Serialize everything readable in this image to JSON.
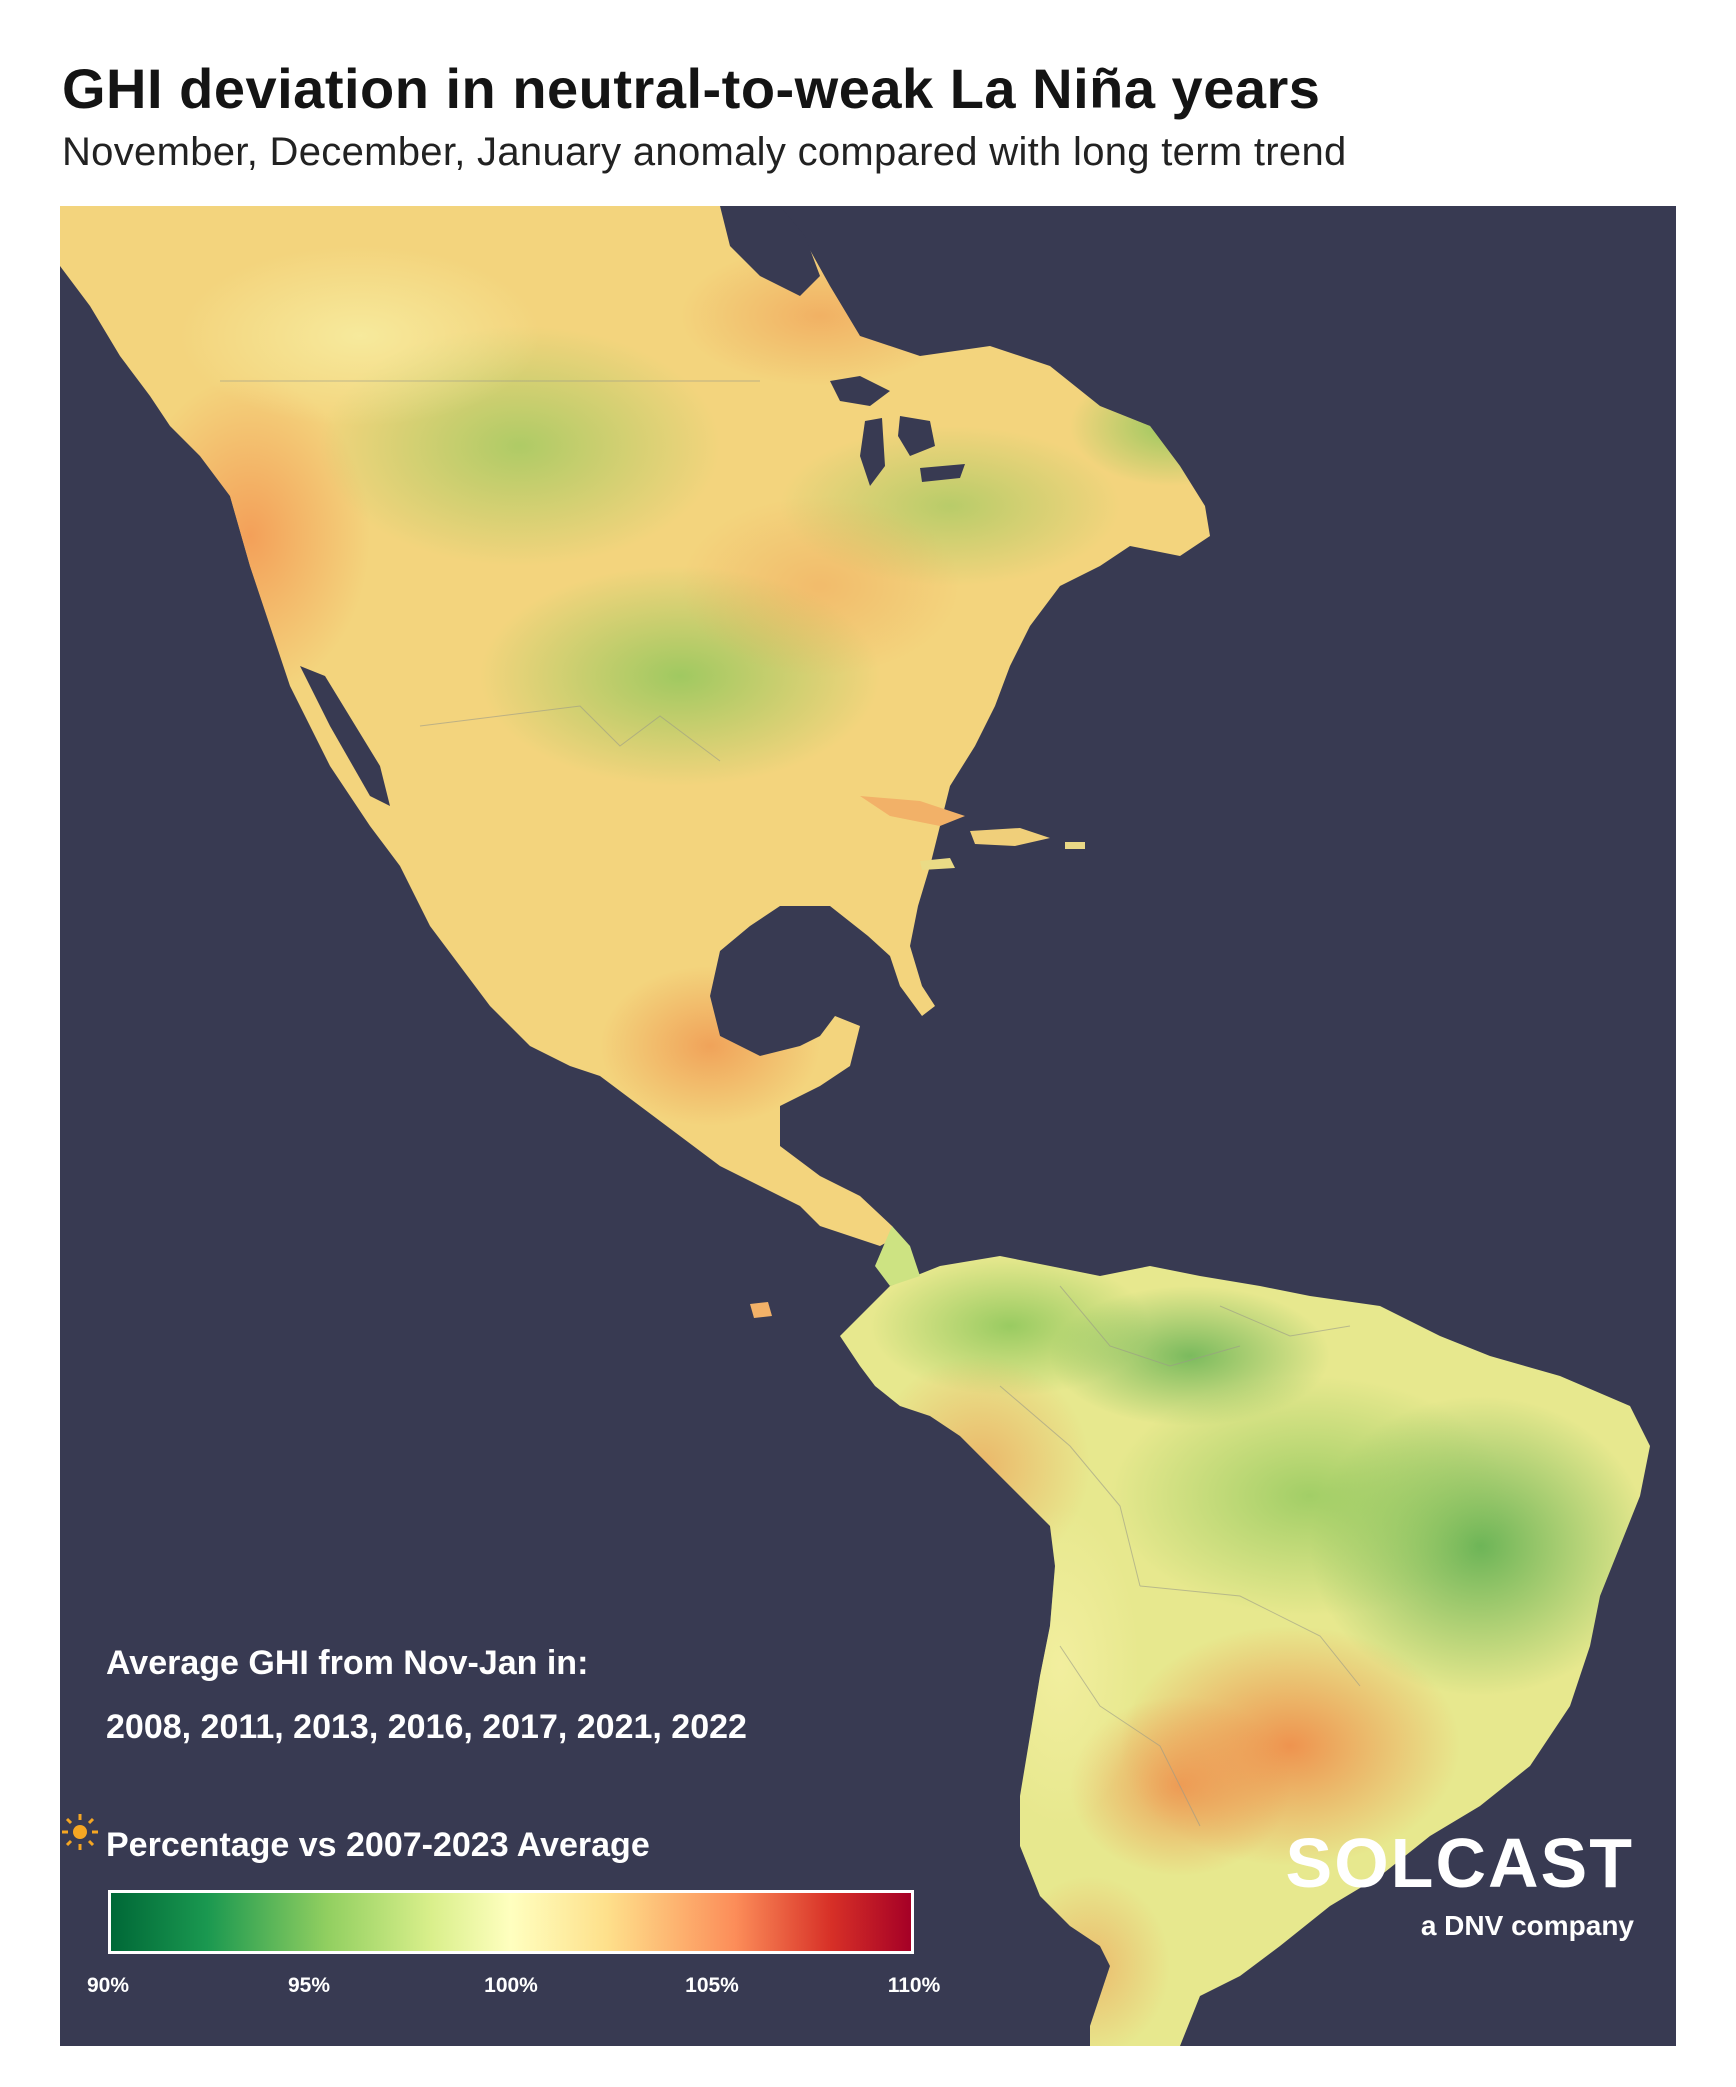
{
  "header": {
    "title": "GHI deviation in neutral-to-weak La Niña years",
    "subtitle": "November, December, January anomaly compared with long term trend"
  },
  "info": {
    "line1": "Average GHI from Nov-Jan in:",
    "line2": "2008, 2011, 2013, 2016, 2017, 2021, 2022"
  },
  "legend": {
    "title": "Percentage vs 2007-2023 Average",
    "ticks": [
      "90%",
      "95%",
      "100%",
      "105%",
      "110%"
    ],
    "colors": [
      "#006837",
      "#1a9850",
      "#91cf60",
      "#d9ef8b",
      "#ffffbf",
      "#fee08b",
      "#fc8d59",
      "#d73027",
      "#a50026"
    ]
  },
  "logo": {
    "wordmark": "SOLCAST",
    "tagline": "a DNV company"
  },
  "map": {
    "background": "#383a52",
    "regions": [
      {
        "name": "north-america",
        "tone": "#f2d27a"
      },
      {
        "name": "central-america",
        "tone": "#e9e88f"
      },
      {
        "name": "caribbean",
        "tone": "#f4c27a"
      },
      {
        "name": "south-america",
        "tone": "#c9df7e"
      }
    ]
  }
}
